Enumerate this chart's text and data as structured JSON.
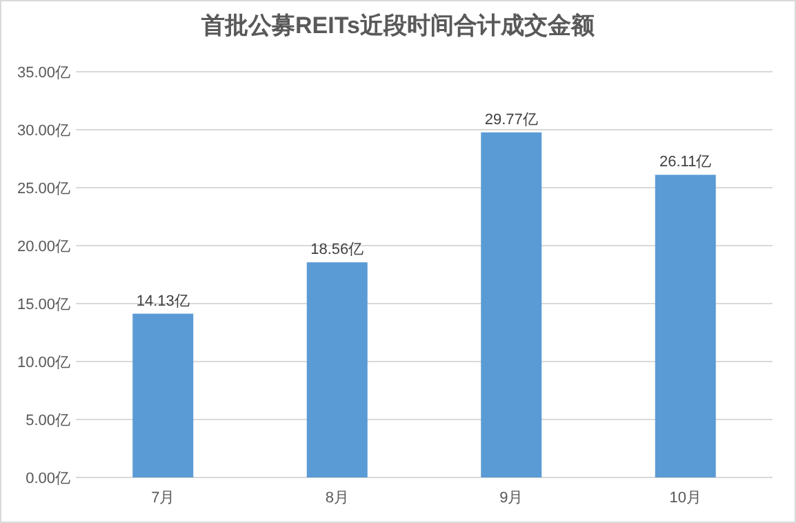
{
  "chart_data": {
    "type": "bar",
    "title": "首批公募REITs近段时间合计成交金额",
    "categories": [
      "7月",
      "8月",
      "9月",
      "10月"
    ],
    "series": [
      {
        "color": "#5b9bd5",
        "values": [
          14.13,
          18.56,
          29.77,
          26.11
        ]
      }
    ],
    "value_labels": [
      "14.13亿",
      "18.56亿",
      "29.77亿",
      "26.11亿"
    ],
    "ylim": [
      0,
      35
    ],
    "yticks": [
      {
        "value": 0,
        "label": "0.00亿"
      },
      {
        "value": 5,
        "label": "5.00亿"
      },
      {
        "value": 10,
        "label": "10.00亿"
      },
      {
        "value": 15,
        "label": "15.00亿"
      },
      {
        "value": 20,
        "label": "20.00亿"
      },
      {
        "value": 25,
        "label": "25.00亿"
      },
      {
        "value": 30,
        "label": "30.00亿"
      },
      {
        "value": 35,
        "label": "35.00亿"
      }
    ],
    "grid": "y"
  }
}
